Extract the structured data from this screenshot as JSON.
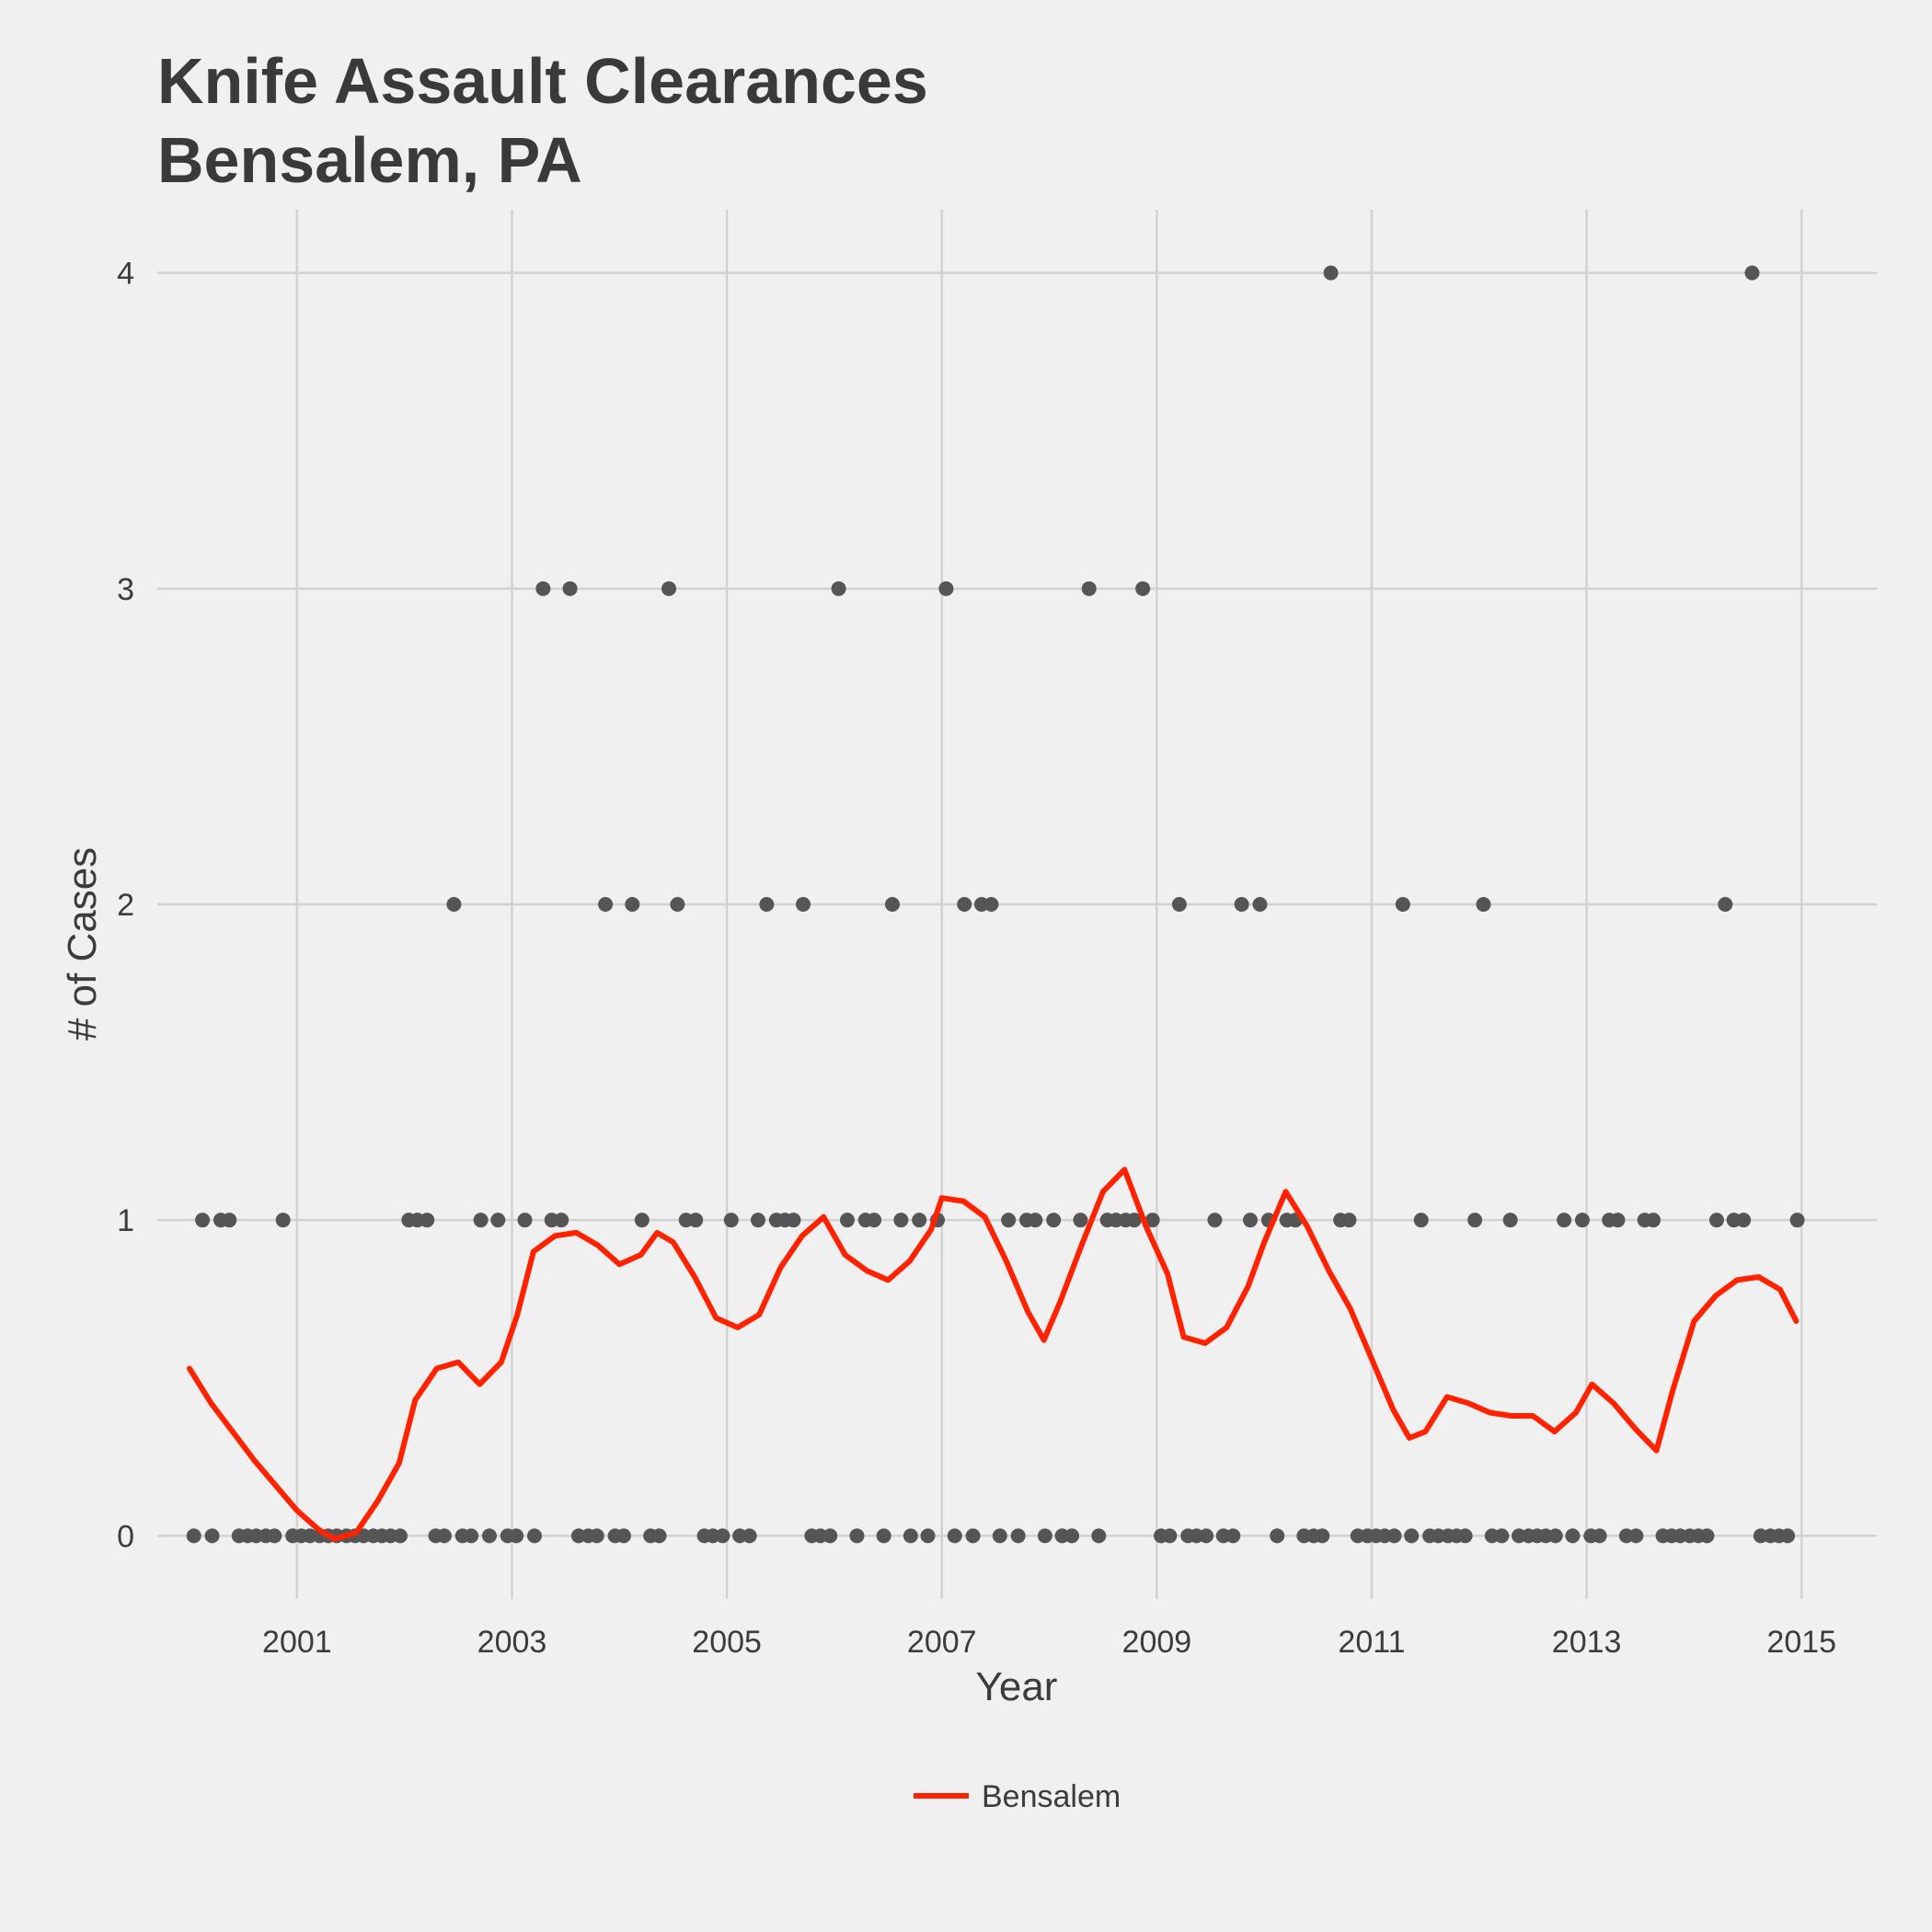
{
  "chart_data": {
    "type": "scatter",
    "title_line1": "Knife Assault Clearances",
    "title_line2": "Bensalem, PA",
    "xlabel": "Year",
    "ylabel": "# of Cases",
    "xlim": [
      1999.7,
      2015.7
    ],
    "ylim": [
      -0.2,
      4.2
    ],
    "x_ticks": [
      2001,
      2003,
      2005,
      2007,
      2009,
      2011,
      2013,
      2015
    ],
    "x_tick_labels": [
      "2001",
      "2003",
      "2005",
      "2007",
      "2009",
      "2011",
      "2013",
      "2015"
    ],
    "y_ticks": [
      0,
      1,
      2,
      3,
      4
    ],
    "y_tick_labels": [
      "0",
      "1",
      "2",
      "3",
      "4"
    ],
    "grid": true,
    "legend_position": "bottom",
    "colors": {
      "background": "#f0f0f0",
      "grid": "#d2d2d2",
      "points": "#555555",
      "line": "#ff2200"
    },
    "points": {
      "name": "observed",
      "x": [
        2000.04,
        2000.12,
        2000.21,
        2000.29,
        2000.37,
        2000.46,
        2000.54,
        2000.62,
        2000.71,
        2000.79,
        2000.87,
        2000.96,
        2001.04,
        2001.12,
        2001.21,
        2001.29,
        2001.37,
        2001.46,
        2001.54,
        2001.62,
        2001.71,
        2001.79,
        2001.87,
        2001.96,
        2002.04,
        2002.12,
        2002.21,
        2002.29,
        2002.37,
        2002.46,
        2002.54,
        2002.62,
        2002.71,
        2002.79,
        2002.87,
        2002.96,
        2003.04,
        2003.12,
        2003.21,
        2003.29,
        2003.37,
        2003.46,
        2003.54,
        2003.62,
        2003.71,
        2003.79,
        2003.87,
        2003.96,
        2004.04,
        2004.12,
        2004.21,
        2004.29,
        2004.37,
        2004.46,
        2004.54,
        2004.62,
        2004.71,
        2004.79,
        2004.87,
        2004.96,
        2005.04,
        2005.12,
        2005.21,
        2005.29,
        2005.37,
        2005.46,
        2005.54,
        2005.62,
        2005.71,
        2005.79,
        2005.87,
        2005.96,
        2006.04,
        2006.12,
        2006.21,
        2006.29,
        2006.37,
        2006.46,
        2006.54,
        2006.62,
        2006.71,
        2006.79,
        2006.87,
        2006.96,
        2007.04,
        2007.12,
        2007.21,
        2007.29,
        2007.37,
        2007.46,
        2007.54,
        2007.62,
        2007.71,
        2007.79,
        2007.87,
        2007.96,
        2008.04,
        2008.12,
        2008.21,
        2008.29,
        2008.37,
        2008.46,
        2008.54,
        2008.62,
        2008.71,
        2008.79,
        2008.87,
        2008.96,
        2009.04,
        2009.12,
        2009.21,
        2009.29,
        2009.37,
        2009.46,
        2009.54,
        2009.62,
        2009.71,
        2009.79,
        2009.87,
        2009.96,
        2010.04,
        2010.12,
        2010.21,
        2010.29,
        2010.37,
        2010.46,
        2010.54,
        2010.62,
        2010.71,
        2010.79,
        2010.87,
        2010.96,
        2011.04,
        2011.12,
        2011.21,
        2011.29,
        2011.37,
        2011.46,
        2011.54,
        2011.62,
        2011.71,
        2011.79,
        2011.87,
        2011.96,
        2012.04,
        2012.12,
        2012.21,
        2012.29,
        2012.37,
        2012.46,
        2012.54,
        2012.62,
        2012.71,
        2012.79,
        2012.87,
        2012.96,
        2013.04,
        2013.12,
        2013.21,
        2013.29,
        2013.37,
        2013.46,
        2013.54,
        2013.62,
        2013.71,
        2013.79,
        2013.87,
        2013.96,
        2014.04,
        2014.12,
        2014.21,
        2014.29,
        2014.37,
        2014.46,
        2014.54,
        2014.62,
        2014.71,
        2014.79,
        2014.87,
        2014.96
      ],
      "y": [
        0,
        1,
        0,
        1,
        1,
        0,
        0,
        0,
        0,
        0,
        1,
        0,
        0,
        0,
        0,
        0,
        0,
        0,
        0,
        0,
        0,
        0,
        0,
        0,
        1,
        1,
        1,
        0,
        0,
        2,
        0,
        0,
        1,
        0,
        1,
        0,
        0,
        1,
        0,
        3,
        1,
        1,
        3,
        0,
        0,
        0,
        2,
        0,
        0,
        2,
        1,
        0,
        0,
        3,
        2,
        1,
        1,
        0,
        0,
        0,
        1,
        0,
        0,
        1,
        2,
        1,
        1,
        1,
        2,
        0,
        0,
        0,
        3,
        1,
        0,
        1,
        1,
        0,
        2,
        1,
        0,
        1,
        0,
        1,
        3,
        0,
        2,
        0,
        2,
        2,
        0,
        1,
        0,
        1,
        1,
        0,
        1,
        0,
        0,
        1,
        3,
        0,
        1,
        1,
        1,
        1,
        3,
        1,
        0,
        0,
        2,
        0,
        0,
        0,
        1,
        0,
        0,
        2,
        1,
        2,
        1,
        0,
        1,
        1,
        0,
        0,
        0,
        4,
        1,
        1,
        0,
        0,
        0,
        0,
        0,
        2,
        0,
        1,
        0,
        0,
        0,
        0,
        0,
        1,
        2,
        0,
        0,
        1,
        0,
        0,
        0,
        0,
        0,
        1,
        0,
        1,
        0,
        0,
        1,
        1,
        0,
        0,
        1,
        1,
        0,
        0,
        0,
        0,
        0,
        0,
        1,
        2,
        1,
        1,
        4,
        0,
        0,
        0,
        0,
        1
      ],
      "last_point": {
        "x": 2014.96,
        "y": 1
      }
    },
    "series": [
      {
        "name": "Bensalem",
        "x": [
          2000.0,
          2000.2,
          2000.4,
          2000.6,
          2000.8,
          2001.0,
          2001.2,
          2001.35,
          2001.55,
          2001.75,
          2001.95,
          2002.1,
          2002.3,
          2002.5,
          2002.7,
          2002.9,
          2003.05,
          2003.2,
          2003.4,
          2003.6,
          2003.8,
          2004.0,
          2004.2,
          2004.35,
          2004.5,
          2004.7,
          2004.9,
          2005.1,
          2005.3,
          2005.5,
          2005.7,
          2005.9,
          2006.1,
          2006.3,
          2006.5,
          2006.7,
          2006.9,
          2007.0,
          2007.2,
          2007.4,
          2007.6,
          2007.8,
          2007.95,
          2008.1,
          2008.3,
          2008.5,
          2008.7,
          2008.9,
          2009.1,
          2009.25,
          2009.45,
          2009.65,
          2009.85,
          2010.0,
          2010.2,
          2010.4,
          2010.6,
          2010.8,
          2011.0,
          2011.2,
          2011.35,
          2011.5,
          2011.7,
          2011.9,
          2012.1,
          2012.3,
          2012.5,
          2012.7,
          2012.9,
          2013.05,
          2013.25,
          2013.45,
          2013.65,
          2013.8,
          2014.0,
          2014.2,
          2014.4,
          2014.6,
          2014.8,
          2014.95
        ],
        "y": [
          0.53,
          0.42,
          0.33,
          0.24,
          0.16,
          0.08,
          0.02,
          -0.01,
          0.01,
          0.11,
          0.23,
          0.43,
          0.53,
          0.55,
          0.48,
          0.55,
          0.7,
          0.9,
          0.95,
          0.96,
          0.92,
          0.86,
          0.89,
          0.96,
          0.93,
          0.82,
          0.69,
          0.66,
          0.7,
          0.85,
          0.95,
          1.01,
          0.89,
          0.84,
          0.81,
          0.87,
          0.97,
          1.07,
          1.06,
          1.01,
          0.87,
          0.71,
          0.62,
          0.74,
          0.92,
          1.09,
          1.16,
          0.98,
          0.83,
          0.63,
          0.61,
          0.66,
          0.79,
          0.93,
          1.09,
          0.98,
          0.84,
          0.72,
          0.56,
          0.4,
          0.31,
          0.33,
          0.44,
          0.42,
          0.39,
          0.38,
          0.38,
          0.33,
          0.39,
          0.48,
          0.42,
          0.34,
          0.27,
          0.46,
          0.68,
          0.76,
          0.81,
          0.82,
          0.78,
          0.68
        ]
      }
    ],
    "legend": [
      {
        "label": "Bensalem",
        "color": "#ff2200"
      }
    ]
  }
}
